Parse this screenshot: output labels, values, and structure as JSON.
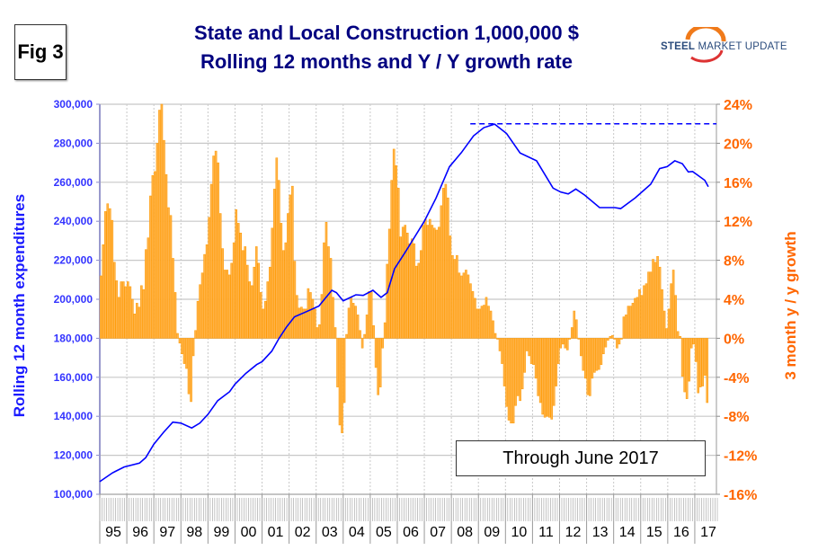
{
  "fig_label": "Fig 3",
  "logo": {
    "bold": "STEEL",
    "rest": " MARKET UPDATE"
  },
  "chart_data": {
    "type": "bar+line",
    "title": "State and Local Construction 1,000,000 $",
    "subtitle": "Rolling 12 months and Y / Y growth rate",
    "ylabel": "Rolling 12 month expenditures",
    "y2label": "3 month y / y growth",
    "annotation": "Through June 2017",
    "ylim": [
      100000,
      300000
    ],
    "y2lim": [
      -16,
      24
    ],
    "yticks": [
      "100,000",
      "120,000",
      "140,000",
      "160,000",
      "180,000",
      "200,000",
      "220,000",
      "240,000",
      "260,000",
      "280,000",
      "300,000"
    ],
    "y2ticks": [
      "-16%",
      "-12%",
      "-8%",
      "-4%",
      "0%",
      "4%",
      "8%",
      "12%",
      "16%",
      "20%",
      "24%"
    ],
    "xticks": [
      "95",
      "96",
      "97",
      "98",
      "99",
      "00",
      "01",
      "02",
      "03",
      "04",
      "05",
      "06",
      "07",
      "08",
      "09",
      "10",
      "11",
      "12",
      "13",
      "14",
      "15",
      "16",
      "17"
    ],
    "grid": true,
    "bar_series": {
      "name": "3 month y / y growth (%)",
      "axis": "right",
      "start": "1995-01",
      "frequency": "monthly",
      "color": "#ff9900",
      "values": [
        6.4,
        9.6,
        13,
        13.8,
        13.3,
        12.1,
        7.8,
        5.9,
        4.2,
        5.8,
        5.8,
        5.3,
        5.8,
        5.3,
        4,
        2.5,
        3.6,
        3.2,
        5.4,
        5,
        9.1,
        10.3,
        14.6,
        16.7,
        17.1,
        20,
        23.4,
        24,
        20.3,
        16.8,
        13.4,
        12.6,
        8.2,
        4.7,
        0.5,
        -0.5,
        -1.6,
        -2.6,
        -3.1,
        -5.7,
        -6.5,
        -1.8,
        0.8,
        3.8,
        5.5,
        6.7,
        8.6,
        9.6,
        12.4,
        15.8,
        18.7,
        19.2,
        18,
        12.8,
        9.2,
        7,
        7,
        6.5,
        7.7,
        9.8,
        13.2,
        11.8,
        10.8,
        9,
        9.4,
        7.5,
        5.8,
        5.4,
        7.3,
        9.4,
        7.7,
        4.7,
        3,
        3.8,
        5.8,
        7.3,
        11.3,
        15.3,
        18.5,
        16.2,
        11.8,
        9,
        9.8,
        12.8,
        14.7,
        15.6,
        7.9,
        4.4,
        3.1,
        3.2,
        3,
        3,
        5.1,
        4.7,
        4,
        3,
        1.1,
        1.4,
        4.5,
        9.8,
        11.9,
        9.4,
        8.2,
        4.2,
        1.1,
        -5,
        -8.9,
        -9.7,
        -6.6,
        0.4,
        3.1,
        4.2,
        3.6,
        3.3,
        2.4,
        0.8,
        -1,
        0.4,
        2.4,
        4.8,
        4.8,
        1.3,
        -3,
        -5.8,
        -5,
        -1,
        1.6,
        7.6,
        11.2,
        16.2,
        19.4,
        17.7,
        15.4,
        10.4,
        11.4,
        11.6,
        10.8,
        9.7,
        10.2,
        9.7,
        7.4,
        7.7,
        9,
        11.6,
        12.2,
        11.6,
        12.2,
        11.6,
        11.3,
        11.1,
        11.4,
        13.6,
        15.4,
        15.8,
        14.4,
        10.5,
        8.5,
        8.1,
        8.5,
        6.7,
        6.4,
        6.7,
        7,
        6.5,
        5.6,
        4.8,
        4.1,
        3,
        3,
        3.3,
        3.4,
        4.2,
        3.3,
        2.8,
        1.8,
        0.5,
        -0.1,
        -1.3,
        -2.6,
        -4.9,
        -7,
        -8.4,
        -8.7,
        -8.7,
        -6.9,
        -5.9,
        -6.4,
        -5.2,
        -3.5,
        -1.3,
        -1.8,
        -2.6,
        -2.7,
        -4.1,
        -5.9,
        -6.6,
        -7.8,
        -8.1,
        -8,
        -8.1,
        -8.3,
        -6.9,
        -4.9,
        -2.6,
        -1,
        -0.6,
        -1,
        -1.2,
        -0.1,
        1.1,
        2.8,
        1.9,
        -0.1,
        -1.8,
        -3.3,
        -4.1,
        -5.8,
        -5.9,
        -4.1,
        -3.5,
        -3.3,
        -3.2,
        -2.7,
        -1.6,
        -0.9,
        -0.2,
        0.2,
        0.3,
        -0.1,
        -1,
        -0.6,
        -0.1,
        2.2,
        2.4,
        3.3,
        3.3,
        3.6,
        4.1,
        4.2,
        5,
        4.4,
        5.4,
        5.6,
        6.8,
        6.8,
        8.1,
        7.8,
        8.4,
        7.3,
        5,
        2.8,
        1,
        3,
        5.6,
        7,
        4.4,
        0.7,
        0.2,
        -3.9,
        -5.5,
        -6.2,
        -4.4,
        -1,
        -0.6,
        -2.4,
        -5.6,
        -5,
        -4.9,
        -3.8,
        -6.6
      ]
    },
    "line_series": {
      "name": "Rolling 12 month expenditures ($M)",
      "axis": "left",
      "color": "#0000ff",
      "points": [
        [
          1995.0,
          106500
        ],
        [
          1995.47,
          111000
        ],
        [
          1995.9,
          114000
        ],
        [
          1996.47,
          116000
        ],
        [
          1996.7,
          118800
        ],
        [
          1997.0,
          125700
        ],
        [
          1997.36,
          131800
        ],
        [
          1997.7,
          137000
        ],
        [
          1998.0,
          136500
        ],
        [
          1998.4,
          134000
        ],
        [
          1998.7,
          136500
        ],
        [
          1999.0,
          141000
        ],
        [
          1999.36,
          148000
        ],
        [
          1999.8,
          152600
        ],
        [
          2000.0,
          156500
        ],
        [
          2000.4,
          162000
        ],
        [
          2000.8,
          166500
        ],
        [
          2001.0,
          168000
        ],
        [
          2001.36,
          173400
        ],
        [
          2001.63,
          180000
        ],
        [
          2001.9,
          185700
        ],
        [
          2002.2,
          191000
        ],
        [
          2002.6,
          193400
        ],
        [
          2003.1,
          196500
        ],
        [
          2003.58,
          204600
        ],
        [
          2003.75,
          203400
        ],
        [
          2004.0,
          199200
        ],
        [
          2004.47,
          202300
        ],
        [
          2004.74,
          202000
        ],
        [
          2005.1,
          204600
        ],
        [
          2005.4,
          201000
        ],
        [
          2005.63,
          203400
        ],
        [
          2005.9,
          215700
        ],
        [
          2006.26,
          223400
        ],
        [
          2006.4,
          226500
        ],
        [
          2007.0,
          240000
        ],
        [
          2007.43,
          251800
        ],
        [
          2007.93,
          268000
        ],
        [
          2008.37,
          275200
        ],
        [
          2008.82,
          283800
        ],
        [
          2009.2,
          288000
        ],
        [
          2009.6,
          289800
        ],
        [
          2010.04,
          285000
        ],
        [
          2010.54,
          275000
        ],
        [
          2011.15,
          271000
        ],
        [
          2011.76,
          257000
        ],
        [
          2012.04,
          255000
        ],
        [
          2012.32,
          254000
        ],
        [
          2012.6,
          256500
        ],
        [
          2012.93,
          253400
        ],
        [
          2013.48,
          247000
        ],
        [
          2014.04,
          247000
        ],
        [
          2014.26,
          246500
        ],
        [
          2014.8,
          252000
        ],
        [
          2015.37,
          259000
        ],
        [
          2015.7,
          267000
        ],
        [
          2015.98,
          268000
        ],
        [
          2016.26,
          271000
        ],
        [
          2016.54,
          269500
        ],
        [
          2016.76,
          265300
        ],
        [
          2016.92,
          265500
        ],
        [
          2017.37,
          261000
        ],
        [
          2017.5,
          257700
        ]
      ]
    },
    "reference_line": {
      "style": "dashed",
      "axis": "left",
      "value": 290000,
      "x_from": 2008.7,
      "x_to": 2017.8,
      "color": "#0000ff"
    },
    "xlim": [
      1995.0,
      2017.8
    ]
  }
}
